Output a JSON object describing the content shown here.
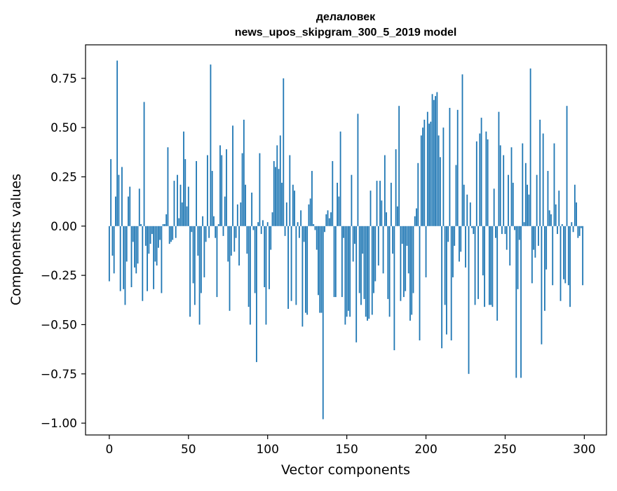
{
  "chart_data": {
    "type": "bar",
    "title": "делаловек",
    "subtitle": "news_upos_skipgram_300_5_2019 model",
    "xlabel": "Vector components",
    "ylabel": "Components values",
    "xlim": [
      -15,
      314
    ],
    "ylim": [
      -1.06,
      0.92
    ],
    "x_ticks": [
      0,
      50,
      100,
      150,
      200,
      250,
      300
    ],
    "x_tick_labels": [
      "0",
      "50",
      "100",
      "150",
      "200",
      "250",
      "300"
    ],
    "y_ticks": [
      0.75,
      0.5,
      0.25,
      0.0,
      -0.25,
      -0.5,
      -0.75,
      -1.0
    ],
    "y_tick_labels": [
      "0.75",
      "0.50",
      "0.25",
      "0.00",
      "−0.25",
      "−0.50",
      "−0.75",
      "−1.00"
    ],
    "grid": false,
    "bar_color": "#1f77b4",
    "values": [
      -0.28,
      0.34,
      -0.15,
      -0.24,
      0.15,
      0.84,
      0.26,
      -0.33,
      0.3,
      -0.32,
      -0.4,
      -0.18,
      0.15,
      0.2,
      -0.31,
      -0.08,
      -0.21,
      -0.24,
      -0.19,
      0.19,
      0.01,
      -0.38,
      0.63,
      -0.1,
      -0.33,
      -0.14,
      -0.09,
      -0.04,
      -0.32,
      -0.18,
      -0.2,
      -0.11,
      -0.07,
      -0.34,
      0.01,
      0.01,
      0.06,
      0.4,
      -0.09,
      -0.08,
      -0.07,
      0.23,
      -0.06,
      0.26,
      0.04,
      0.21,
      0.12,
      0.48,
      0.34,
      0.1,
      0.2,
      -0.46,
      -0.03,
      -0.29,
      -0.4,
      0.33,
      -0.15,
      -0.5,
      -0.34,
      0.05,
      -0.26,
      -0.08,
      0.36,
      -0.06,
      0.82,
      0.28,
      0.05,
      -0.06,
      -0.36,
      0.01,
      0.41,
      0.36,
      -0.05,
      0.15,
      0.39,
      -0.18,
      -0.43,
      -0.15,
      0.51,
      -0.13,
      -0.06,
      0.11,
      -0.2,
      0.12,
      0.37,
      0.54,
      0.21,
      -0.14,
      -0.41,
      -0.5,
      0.17,
      -0.02,
      -0.34,
      -0.69,
      0.02,
      0.37,
      -0.04,
      0.03,
      -0.31,
      -0.5,
      0.02,
      -0.32,
      -0.12,
      0.07,
      0.33,
      0.3,
      0.41,
      0.29,
      0.46,
      0.22,
      0.75,
      -0.05,
      0.12,
      -0.42,
      0.36,
      -0.38,
      0.21,
      0.18,
      -0.4,
      0.02,
      -0.06,
      0.08,
      -0.51,
      -0.08,
      -0.44,
      -0.45,
      0.11,
      0.14,
      0.28,
      0.01,
      -0.02,
      -0.12,
      -0.35,
      -0.44,
      -0.44,
      -0.98,
      -0.03,
      0.06,
      0.08,
      0.04,
      0.07,
      0.33,
      -0.36,
      -0.36,
      0.22,
      0.15,
      0.48,
      -0.36,
      -0.06,
      -0.5,
      -0.46,
      -0.43,
      -0.46,
      0.26,
      -0.18,
      -0.09,
      -0.59,
      0.57,
      -0.34,
      -0.4,
      -0.14,
      -0.37,
      -0.46,
      -0.48,
      -0.47,
      0.18,
      -0.45,
      -0.34,
      -0.28,
      0.23,
      -0.2,
      0.23,
      0.13,
      -0.24,
      0.36,
      0.07,
      -0.37,
      -0.46,
      0.22,
      -0.14,
      -0.63,
      0.39,
      0.1,
      0.61,
      -0.38,
      -0.09,
      -0.36,
      -0.33,
      -0.1,
      -0.24,
      -0.48,
      -0.45,
      -0.34,
      0.05,
      0.09,
      0.32,
      -0.58,
      0.46,
      0.5,
      0.54,
      -0.26,
      0.58,
      0.52,
      0.53,
      0.67,
      0.64,
      0.66,
      0.68,
      0.46,
      0.35,
      -0.62,
      0.5,
      -0.4,
      -0.55,
      -0.08,
      0.6,
      -0.58,
      -0.26,
      -0.1,
      0.31,
      0.59,
      -0.18,
      -0.13,
      0.77,
      0.21,
      -0.21,
      0.16,
      -0.75,
      0.12,
      -0.01,
      -0.04,
      -0.4,
      0.43,
      -0.37,
      0.47,
      0.55,
      -0.25,
      -0.41,
      0.48,
      0.44,
      -0.4,
      -0.4,
      -0.41,
      0.19,
      -0.06,
      -0.48,
      0.58,
      0.41,
      -0.04,
      0.36,
      -0.04,
      -0.12,
      0.26,
      -0.2,
      0.4,
      0.22,
      -0.02,
      -0.77,
      -0.32,
      -0.07,
      -0.77,
      0.42,
      0.02,
      0.32,
      0.21,
      0.16,
      0.8,
      -0.29,
      -0.12,
      -0.16,
      0.26,
      -0.1,
      0.54,
      -0.6,
      0.47,
      -0.43,
      -0.22,
      0.28,
      0.08,
      0.06,
      -0.3,
      0.42,
      0.11,
      -0.04,
      0.18,
      -0.38,
      0.01,
      -0.27,
      -0.29,
      0.61,
      -0.3,
      -0.41,
      0.02,
      -0.03,
      0.21,
      0.12,
      -0.06,
      -0.05,
      -0.01,
      -0.3
    ]
  }
}
